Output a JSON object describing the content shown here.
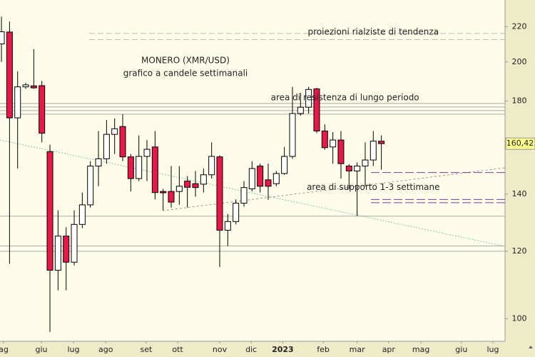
{
  "chart_data": {
    "type": "candlestick",
    "title": "MONERO (XMR/USD)",
    "subtitle": "grafico a candele settimanali",
    "log_scale": true,
    "ylim": [
      94.1,
      236.4
    ],
    "yticks": [
      100,
      120,
      140,
      180,
      200,
      220
    ],
    "last_price": {
      "value": 160.42,
      "label": "160,42"
    },
    "xlim": [
      -0.18,
      62.3
    ],
    "xticks": [
      {
        "value": 0.26,
        "label": "ag"
      },
      {
        "value": 4.94,
        "label": "giu"
      },
      {
        "value": 8.91,
        "label": "lug"
      },
      {
        "value": 12.9,
        "label": "ago"
      },
      {
        "value": 17.9,
        "label": "set"
      },
      {
        "value": 21.8,
        "label": "ott"
      },
      {
        "value": 27.0,
        "label": "nov"
      },
      {
        "value": 30.9,
        "label": "dic"
      },
      {
        "value": 34.8,
        "label": "2023"
      },
      {
        "value": 39.8,
        "label": "feb"
      },
      {
        "value": 44.0,
        "label": "mar"
      },
      {
        "value": 47.9,
        "label": "apr"
      },
      {
        "value": 51.9,
        "label": "mag"
      },
      {
        "value": 56.9,
        "label": "giu"
      },
      {
        "value": 60.8,
        "label": "lug"
      }
    ],
    "up_color": "#ffffff",
    "down_color": "#e8184a",
    "x": [
      0,
      1,
      2,
      3,
      4,
      5,
      6,
      7,
      8,
      9,
      10,
      11,
      12,
      13,
      14,
      15,
      16,
      17,
      18,
      19,
      20,
      21,
      22,
      23,
      24,
      25,
      26,
      27,
      28,
      29,
      30,
      31,
      32,
      33,
      34,
      35,
      36,
      37,
      38,
      39,
      40,
      41,
      42,
      43,
      44,
      45,
      46,
      47
    ],
    "open": [
      210,
      216.8,
      172,
      187,
      187.5,
      187.6,
      157,
      114,
      125,
      116.5,
      129,
      136,
      151,
      154,
      164.5,
      168,
      154.8,
      146,
      155,
      159,
      141,
      141,
      141,
      145,
      144,
      143.8,
      147.5,
      154.8,
      127,
      130,
      136.6,
      142,
      151,
      145.5,
      144,
      148,
      155,
      174,
      177,
      186,
      166,
      159,
      162,
      151,
      149,
      151,
      153.5,
      161.5
    ],
    "high": [
      226,
      223,
      195,
      189,
      207,
      190,
      160,
      134,
      128,
      134,
      140.6,
      153,
      166,
      171,
      171.7,
      173.7,
      156,
      164,
      162,
      166,
      142,
      151,
      151,
      147,
      149,
      150,
      161,
      155.5,
      132.7,
      138,
      145,
      153,
      152,
      152,
      149,
      159,
      187,
      184,
      187,
      186.5,
      169,
      165.5,
      166,
      151.8,
      152.5,
      161,
      166,
      164
    ],
    "low": [
      200,
      116,
      150,
      186,
      186,
      161,
      96.5,
      108,
      108,
      115.5,
      127.7,
      135,
      143,
      152,
      156,
      153,
      141,
      145,
      145,
      138,
      134,
      135,
      136,
      135,
      139,
      140.6,
      146,
      115,
      121.7,
      129,
      135.3,
      141,
      140.6,
      137.9,
      143,
      147.5,
      154,
      173,
      174,
      165,
      157.8,
      152,
      146,
      141.8,
      132,
      143,
      151,
      149.5
    ],
    "close": [
      217,
      172,
      187,
      188,
      186.5,
      165,
      114,
      125,
      116.5,
      129,
      136,
      151,
      154,
      164.5,
      167,
      154.8,
      146,
      155,
      158,
      140.6,
      140.5,
      137,
      143,
      142.6,
      142.5,
      147.5,
      155,
      127,
      130,
      136.6,
      142.5,
      150,
      143,
      143,
      148,
      155,
      174,
      177,
      185.7,
      166,
      158.7,
      162,
      152,
      149,
      151,
      153.5,
      161.5,
      160.42
    ],
    "levels": [
      {
        "value": 216.0,
        "style": "dashed-gray"
      },
      {
        "value": 212.4,
        "style": "dashed-gray"
      },
      {
        "value": 178.8,
        "style": "solid-gray"
      },
      {
        "value": 177.1,
        "style": "solid-gray"
      },
      {
        "value": 175.4,
        "style": "solid-gray"
      },
      {
        "value": 173.7,
        "style": "solid-gray"
      },
      {
        "value": 131.9,
        "style": "solid-gray"
      },
      {
        "value": 121.7,
        "style": "solid-gray"
      },
      {
        "value": 120.0,
        "style": "solid-gray"
      },
      {
        "value": 148.4,
        "style": "dashed-purple"
      },
      {
        "value": 138.0,
        "style": "dashed-purple"
      },
      {
        "value": 136.8,
        "style": "dashed-purple"
      }
    ],
    "annotations": [
      {
        "text": "proiezioni rialziste di tendenza",
        "x": 46,
        "value": 216.8
      },
      {
        "text": "area di resistenza di lungo periodo",
        "x": 42.5,
        "value": 181.5
      },
      {
        "text": "area di supporto 1-3 settimane",
        "x": 46,
        "value": 142.6
      }
    ]
  }
}
